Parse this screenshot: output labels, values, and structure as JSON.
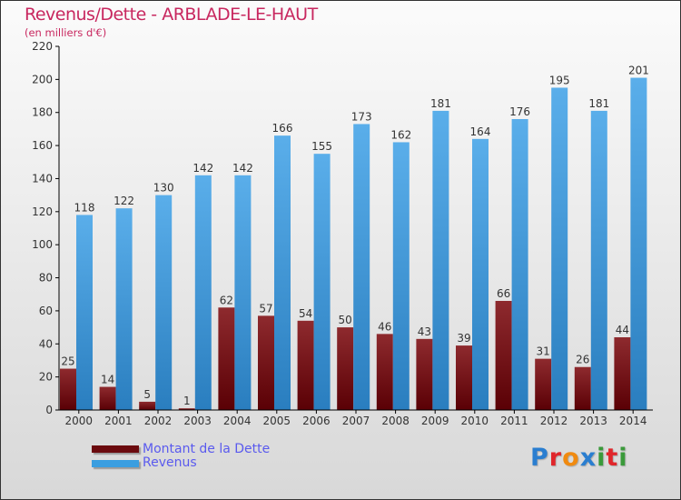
{
  "chart_data": {
    "type": "bar",
    "title": "Revenus/Dette - ARBLADE-LE-HAUT",
    "subtitle": "(en milliers d'€)",
    "categories": [
      "2000",
      "2001",
      "2002",
      "2003",
      "2004",
      "2005",
      "2006",
      "2007",
      "2008",
      "2009",
      "2010",
      "2011",
      "2012",
      "2013",
      "2014"
    ],
    "series": [
      {
        "name": "Montant de la Dette",
        "color": "#6b0a0e",
        "values": [
          25,
          14,
          5,
          1,
          62,
          57,
          54,
          50,
          46,
          43,
          39,
          66,
          31,
          26,
          44
        ]
      },
      {
        "name": "Revenus",
        "color": "#3a9ee0",
        "values": [
          118,
          122,
          130,
          142,
          142,
          166,
          155,
          173,
          162,
          181,
          164,
          176,
          195,
          181,
          201
        ]
      }
    ],
    "ylim": [
      0,
      220
    ],
    "yticks": [
      0,
      20,
      40,
      60,
      80,
      100,
      120,
      140,
      160,
      180,
      200,
      220
    ],
    "grid": false,
    "legend": "bottom-left"
  },
  "logo": {
    "letters": [
      "P",
      "r",
      "o",
      "x",
      "i",
      "t",
      "i"
    ],
    "text": "Proxiti"
  }
}
